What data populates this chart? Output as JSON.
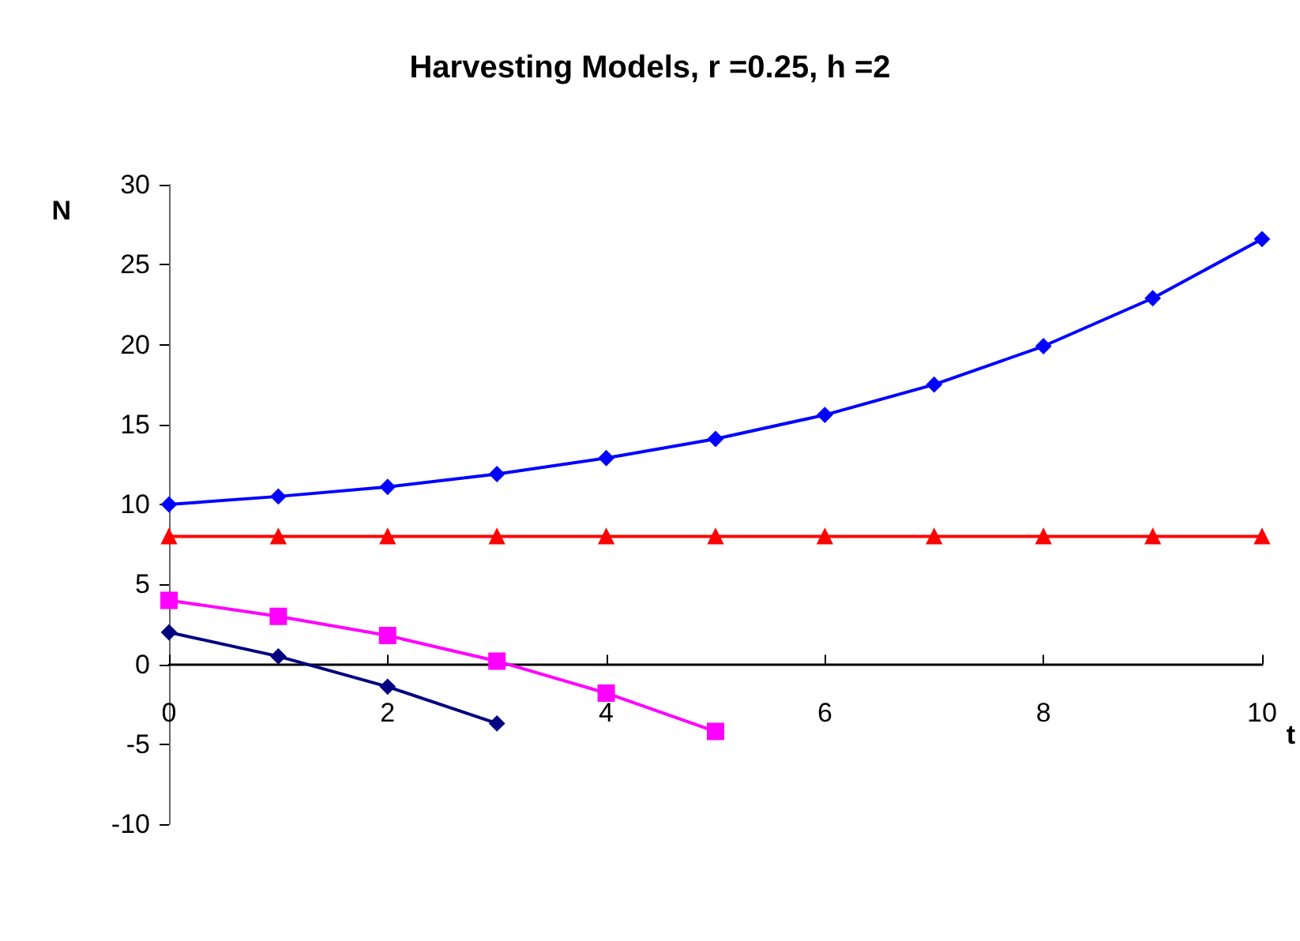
{
  "chart_data": {
    "type": "line",
    "title": "Harvesting Models, r =0.25, h =2",
    "xlabel": "t",
    "ylabel": "N",
    "xlim": [
      0,
      10
    ],
    "xticks": [
      0,
      2,
      4,
      6,
      8,
      10
    ],
    "ylim": [
      -10,
      30
    ],
    "yticks": [
      -10,
      -5,
      0,
      5,
      10,
      15,
      20,
      25,
      30
    ],
    "series": [
      {
        "color": "#000080",
        "marker": "diamond",
        "x": [
          0,
          1,
          2,
          3
        ],
        "values": [
          2,
          0.5,
          -1.4,
          -3.7
        ]
      },
      {
        "color": "#ff00ff",
        "marker": "square",
        "x": [
          0,
          1,
          2,
          3,
          4,
          5
        ],
        "values": [
          4,
          3,
          1.8,
          0.2,
          -1.8,
          -4.2
        ]
      },
      {
        "color": "#ff0000",
        "marker": "triangle",
        "x": [
          0,
          1,
          2,
          3,
          4,
          5,
          6,
          7,
          8,
          9,
          10
        ],
        "values": [
          8,
          8,
          8,
          8,
          8,
          8,
          8,
          8,
          8,
          8,
          8
        ]
      },
      {
        "color": "#0000ff",
        "marker": "diamond",
        "x": [
          0,
          1,
          2,
          3,
          4,
          5,
          6,
          7,
          8,
          9,
          10
        ],
        "values": [
          10,
          10.5,
          11.1,
          11.9,
          12.9,
          14.1,
          15.6,
          17.5,
          19.9,
          22.9,
          26.6
        ]
      }
    ]
  }
}
